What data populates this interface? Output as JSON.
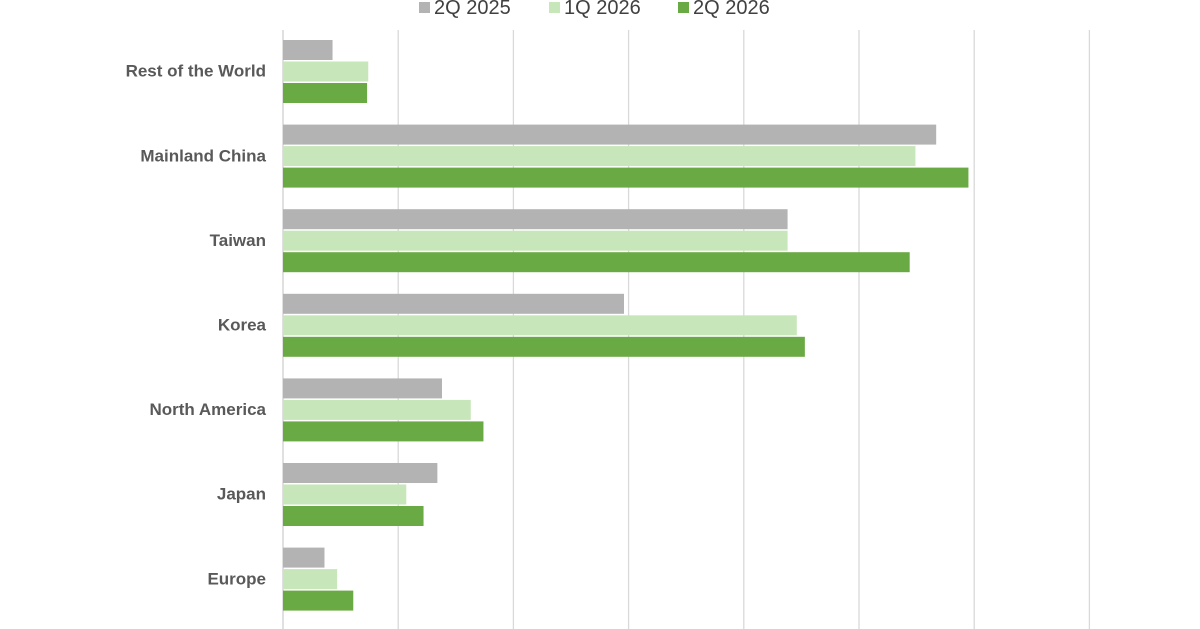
{
  "chart_data": {
    "type": "bar",
    "orientation": "horizontal",
    "title": "",
    "xlabel": "",
    "ylabel": "",
    "categories": [
      "Rest of the World",
      "Mainland China",
      "Taiwan",
      "Korea",
      "North America",
      "Japan",
      "Europe"
    ],
    "series": [
      {
        "name": "2Q 2025",
        "color": "#b3b3b3",
        "values": [
          0.43,
          5.67,
          4.38,
          2.96,
          1.38,
          1.34,
          0.36
        ]
      },
      {
        "name": "1Q 2026",
        "color": "#c7e6b9",
        "values": [
          0.74,
          5.49,
          4.38,
          4.46,
          1.63,
          1.07,
          0.47
        ]
      },
      {
        "name": "2Q 2026",
        "color": "#6aaa44",
        "values": [
          0.73,
          5.95,
          5.44,
          4.53,
          1.74,
          1.22,
          0.61
        ]
      }
    ],
    "xlim": [
      0,
      7
    ],
    "x_gridlines": true,
    "tick_labels_shown": false,
    "legend_position": "top-center"
  }
}
